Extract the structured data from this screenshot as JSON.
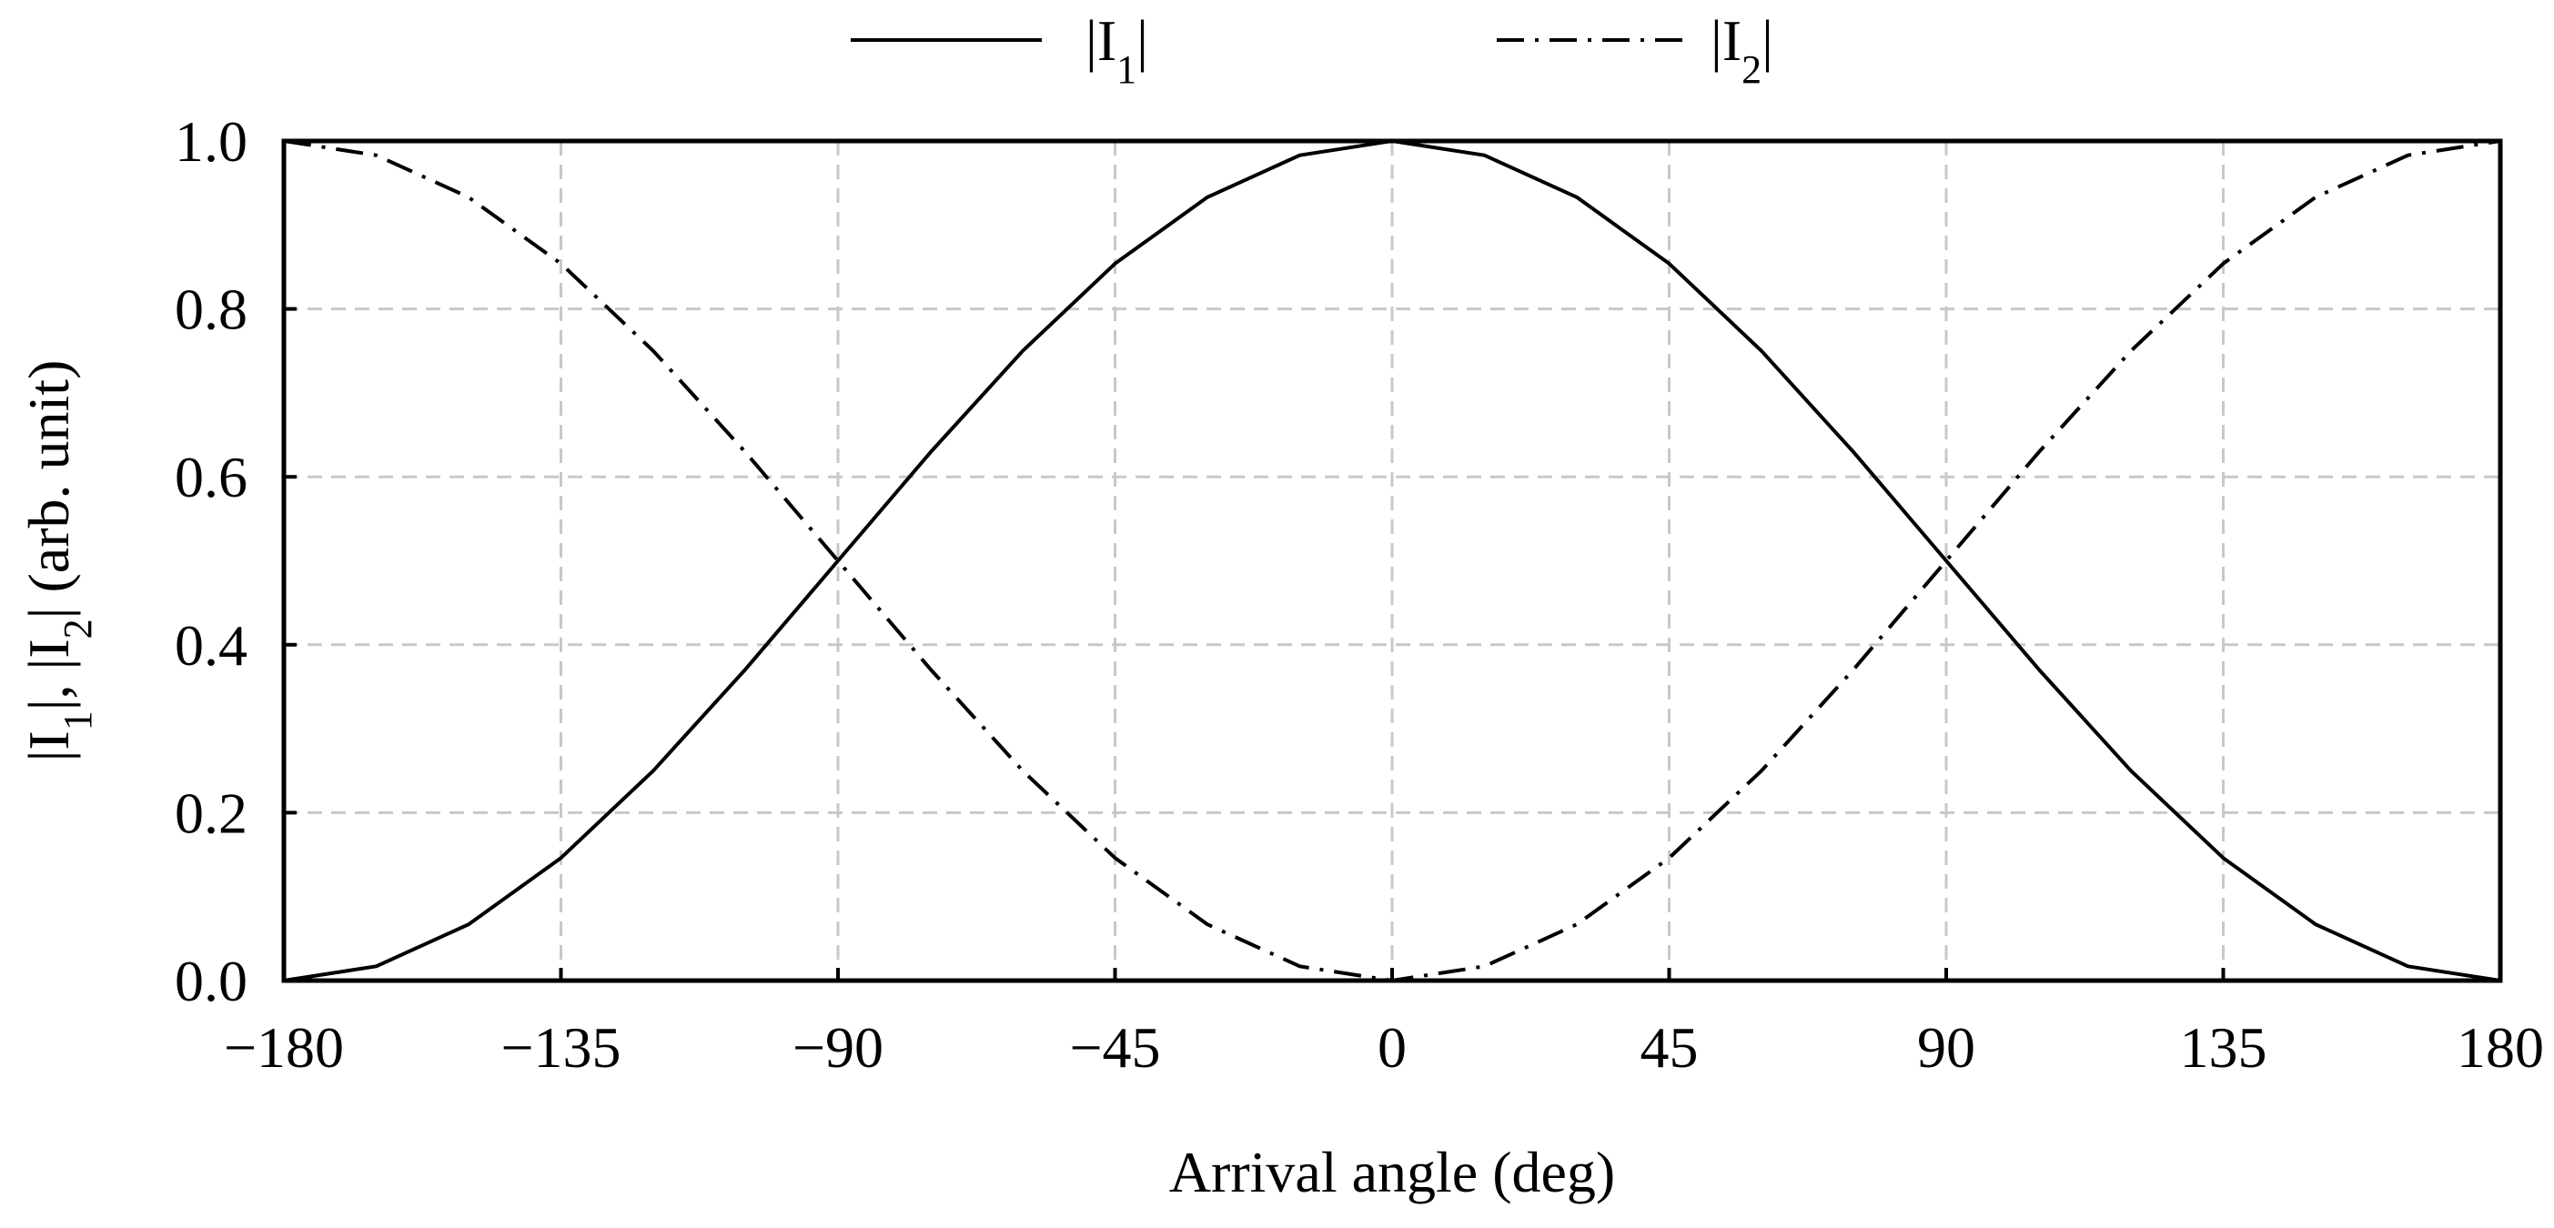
{
  "chart_data": {
    "type": "line",
    "title": "",
    "xlabel": "Arrival angle (deg)",
    "ylabel": {
      "parts": [
        {
          "text": "|I",
          "sub": false
        },
        {
          "text": "1",
          "sub": true
        },
        {
          "text": "|, |I",
          "sub": false
        },
        {
          "text": "2",
          "sub": true
        },
        {
          "text": "| (arb. unit)",
          "sub": false
        }
      ]
    },
    "xlim": [
      -180,
      180
    ],
    "ylim": [
      0,
      1
    ],
    "xticks": [
      -180,
      -135,
      -90,
      -45,
      0,
      45,
      90,
      135,
      180
    ],
    "xtick_labels": [
      "−180",
      "−135",
      "−90",
      "−45",
      "0",
      "45",
      "90",
      "135",
      "180"
    ],
    "yticks": [
      0,
      0.2,
      0.4,
      0.6,
      0.8,
      1.0
    ],
    "ytick_labels": [
      "0.0",
      "0.2",
      "0.4",
      "0.6",
      "0.8",
      "1.0"
    ],
    "grid": true,
    "legend_position": "top-center",
    "x": [
      -180,
      -165,
      -150,
      -135,
      -120,
      -105,
      -90,
      -75,
      -60,
      -45,
      -30,
      -15,
      0,
      15,
      30,
      45,
      60,
      75,
      90,
      105,
      120,
      135,
      150,
      165,
      180
    ],
    "series": [
      {
        "name_parts": [
          {
            "text": "|I",
            "sub": false
          },
          {
            "text": "1",
            "sub": true
          },
          {
            "text": "|",
            "sub": false
          }
        ],
        "style": "solid",
        "color": "#000000",
        "values": [
          0.0,
          0.017,
          0.067,
          0.146,
          0.25,
          0.371,
          0.5,
          0.629,
          0.75,
          0.854,
          0.933,
          0.983,
          1.0,
          0.983,
          0.933,
          0.854,
          0.75,
          0.629,
          0.5,
          0.371,
          0.25,
          0.146,
          0.067,
          0.017,
          0.0
        ]
      },
      {
        "name_parts": [
          {
            "text": "|I",
            "sub": false
          },
          {
            "text": "2",
            "sub": true
          },
          {
            "text": "|",
            "sub": false
          }
        ],
        "style": "dash-dot",
        "color": "#000000",
        "values": [
          1.0,
          0.983,
          0.933,
          0.854,
          0.75,
          0.629,
          0.5,
          0.371,
          0.25,
          0.146,
          0.067,
          0.017,
          0.0,
          0.017,
          0.067,
          0.146,
          0.25,
          0.371,
          0.5,
          0.629,
          0.75,
          0.854,
          0.933,
          0.983,
          1.0
        ]
      }
    ]
  }
}
